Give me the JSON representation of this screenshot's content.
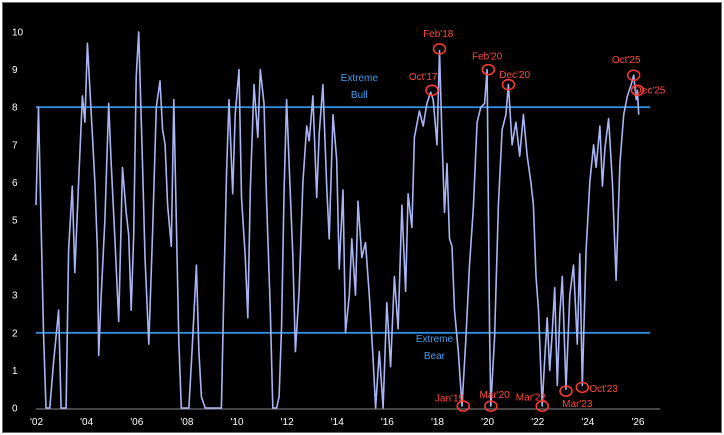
{
  "chart_data": {
    "type": "line",
    "title": "",
    "xlabel": "",
    "ylabel": "",
    "ylim": [
      0,
      10
    ],
    "xlim": [
      2002,
      2026.9
    ],
    "grid": false,
    "legend": "none",
    "colors": {
      "background": "#000000",
      "line": "#a9b4f5",
      "threshold": "#2e8fe0",
      "annotation": "#ff3b30",
      "text": "#ffffff"
    },
    "x_ticks": [
      {
        "x": 2002,
        "label": "'02"
      },
      {
        "x": 2004,
        "label": "'04"
      },
      {
        "x": 2006,
        "label": "'06"
      },
      {
        "x": 2008,
        "label": "'08"
      },
      {
        "x": 2010,
        "label": "'10"
      },
      {
        "x": 2012,
        "label": "'12"
      },
      {
        "x": 2014,
        "label": "'14"
      },
      {
        "x": 2016,
        "label": "'16"
      },
      {
        "x": 2018,
        "label": "'18"
      },
      {
        "x": 2020,
        "label": "'20"
      },
      {
        "x": 2022,
        "label": "'22"
      },
      {
        "x": 2024,
        "label": "'24"
      },
      {
        "x": 2026,
        "label": "'26"
      }
    ],
    "y_ticks": [
      {
        "y": 0,
        "label": "0"
      },
      {
        "y": 1,
        "label": "1"
      },
      {
        "y": 2,
        "label": "2"
      },
      {
        "y": 3,
        "label": "3"
      },
      {
        "y": 4,
        "label": "4"
      },
      {
        "y": 5,
        "label": "5"
      },
      {
        "y": 6,
        "label": "6"
      },
      {
        "y": 7,
        "label": "7"
      },
      {
        "y": 8,
        "label": "8"
      },
      {
        "y": 9,
        "label": "9"
      },
      {
        "y": 10,
        "label": "10"
      }
    ],
    "thresholds": [
      {
        "y": 8,
        "label_lines": [
          "Extreme",
          "Bull"
        ],
        "label_x": 2014.9,
        "label_y": [
          8.7,
          8.25
        ]
      },
      {
        "y": 2,
        "label_lines": [
          "Extreme",
          "Bear"
        ],
        "label_x": 2017.9,
        "label_y": [
          1.75,
          1.3
        ]
      }
    ],
    "annotations": [
      {
        "label": "Oct'17",
        "x": 2017.8,
        "y": 8.45,
        "label_x": 2017.45,
        "label_y": 8.8
      },
      {
        "label": "Feb'18",
        "x": 2018.1,
        "y": 9.55,
        "label_x": 2018.05,
        "label_y": 9.95
      },
      {
        "label": "Jan'19",
        "x": 2019.05,
        "y": 0.05,
        "label_x": 2018.5,
        "label_y": 0.25
      },
      {
        "label": "Feb'20",
        "x": 2020.05,
        "y": 9.0,
        "label_x": 2020.0,
        "label_y": 9.35
      },
      {
        "label": "Mar'20",
        "x": 2020.15,
        "y": 0.05,
        "label_x": 2020.3,
        "label_y": 0.35
      },
      {
        "label": "Dec'20",
        "x": 2020.85,
        "y": 8.6,
        "label_x": 2021.1,
        "label_y": 8.85
      },
      {
        "label": "Mar'22",
        "x": 2022.2,
        "y": 0.05,
        "label_x": 2021.75,
        "label_y": 0.28
      },
      {
        "label": "Mar'23",
        "x": 2023.15,
        "y": 0.45,
        "label_x": 2023.6,
        "label_y": 0.1
      },
      {
        "label": "Oct'23",
        "x": 2023.8,
        "y": 0.55,
        "label_x": 2024.65,
        "label_y": 0.5
      },
      {
        "label": "Oct'25",
        "x": 2025.85,
        "y": 8.85,
        "label_x": 2025.55,
        "label_y": 9.25
      },
      {
        "label": "Dec'25",
        "x": 2026.0,
        "y": 8.45,
        "label_x": 2026.5,
        "label_y": 8.45
      }
    ],
    "series": [
      {
        "values": [
          [
            2002.0,
            5.4
          ],
          [
            2002.1,
            8.0
          ],
          [
            2002.2,
            5.0
          ],
          [
            2002.3,
            2.0
          ],
          [
            2002.4,
            0.0
          ],
          [
            2002.55,
            0.0
          ],
          [
            2002.7,
            1.2
          ],
          [
            2002.9,
            2.6
          ],
          [
            2003.0,
            0.0
          ],
          [
            2003.2,
            0.0
          ],
          [
            2003.3,
            4.2
          ],
          [
            2003.45,
            5.9
          ],
          [
            2003.55,
            3.6
          ],
          [
            2003.7,
            6.0
          ],
          [
            2003.85,
            8.3
          ],
          [
            2003.95,
            7.6
          ],
          [
            2004.05,
            9.7
          ],
          [
            2004.2,
            7.9
          ],
          [
            2004.35,
            6.0
          ],
          [
            2004.45,
            4.2
          ],
          [
            2004.5,
            1.4
          ],
          [
            2004.6,
            3.0
          ],
          [
            2004.75,
            5.0
          ],
          [
            2004.9,
            8.1
          ],
          [
            2005.0,
            6.5
          ],
          [
            2005.15,
            4.5
          ],
          [
            2005.3,
            2.3
          ],
          [
            2005.45,
            6.4
          ],
          [
            2005.6,
            5.2
          ],
          [
            2005.7,
            4.6
          ],
          [
            2005.8,
            2.6
          ],
          [
            2005.9,
            4.6
          ],
          [
            2006.0,
            8.8
          ],
          [
            2006.1,
            10.0
          ],
          [
            2006.25,
            6.5
          ],
          [
            2006.35,
            4.0
          ],
          [
            2006.5,
            1.7
          ],
          [
            2006.65,
            4.6
          ],
          [
            2006.8,
            8.0
          ],
          [
            2006.95,
            8.7
          ],
          [
            2007.05,
            7.4
          ],
          [
            2007.15,
            7.0
          ],
          [
            2007.25,
            5.4
          ],
          [
            2007.4,
            4.3
          ],
          [
            2007.5,
            8.2
          ],
          [
            2007.6,
            5.0
          ],
          [
            2007.7,
            1.8
          ],
          [
            2007.8,
            0.0
          ],
          [
            2008.1,
            0.0
          ],
          [
            2008.25,
            1.8
          ],
          [
            2008.4,
            3.8
          ],
          [
            2008.5,
            1.5
          ],
          [
            2008.6,
            0.3
          ],
          [
            2008.75,
            0.0
          ],
          [
            2009.2,
            0.0
          ],
          [
            2009.4,
            0.0
          ],
          [
            2009.5,
            3.3
          ],
          [
            2009.6,
            6.2
          ],
          [
            2009.7,
            8.2
          ],
          [
            2009.85,
            5.7
          ],
          [
            2009.95,
            7.8
          ],
          [
            2010.1,
            9.0
          ],
          [
            2010.2,
            5.6
          ],
          [
            2010.35,
            4.0
          ],
          [
            2010.45,
            2.4
          ],
          [
            2010.55,
            5.8
          ],
          [
            2010.7,
            8.6
          ],
          [
            2010.85,
            7.2
          ],
          [
            2010.95,
            9.0
          ],
          [
            2011.1,
            8.1
          ],
          [
            2011.2,
            5.5
          ],
          [
            2011.35,
            2.6
          ],
          [
            2011.45,
            0.0
          ],
          [
            2011.6,
            0.0
          ],
          [
            2011.7,
            0.3
          ],
          [
            2011.8,
            2.2
          ],
          [
            2011.9,
            5.8
          ],
          [
            2012.0,
            8.2
          ],
          [
            2012.1,
            6.5
          ],
          [
            2012.25,
            4.0
          ],
          [
            2012.35,
            1.5
          ],
          [
            2012.5,
            3.1
          ],
          [
            2012.65,
            6.0
          ],
          [
            2012.8,
            7.5
          ],
          [
            2012.9,
            7.1
          ],
          [
            2013.05,
            8.3
          ],
          [
            2013.2,
            5.6
          ],
          [
            2013.3,
            7.3
          ],
          [
            2013.45,
            8.6
          ],
          [
            2013.6,
            5.9
          ],
          [
            2013.7,
            4.5
          ],
          [
            2013.85,
            7.8
          ],
          [
            2014.0,
            6.6
          ],
          [
            2014.1,
            3.7
          ],
          [
            2014.25,
            5.8
          ],
          [
            2014.35,
            2.0
          ],
          [
            2014.5,
            3.0
          ],
          [
            2014.6,
            4.5
          ],
          [
            2014.75,
            3.0
          ],
          [
            2014.85,
            5.5
          ],
          [
            2015.0,
            4.0
          ],
          [
            2015.15,
            4.4
          ],
          [
            2015.3,
            3.0
          ],
          [
            2015.45,
            1.3
          ],
          [
            2015.55,
            0.0
          ],
          [
            2015.7,
            1.5
          ],
          [
            2015.85,
            0.0
          ],
          [
            2016.0,
            2.8
          ],
          [
            2016.15,
            1.1
          ],
          [
            2016.3,
            3.5
          ],
          [
            2016.45,
            2.1
          ],
          [
            2016.6,
            5.4
          ],
          [
            2016.75,
            3.1
          ],
          [
            2016.85,
            5.7
          ],
          [
            2017.0,
            4.8
          ],
          [
            2017.1,
            7.2
          ],
          [
            2017.3,
            7.9
          ],
          [
            2017.45,
            7.5
          ],
          [
            2017.6,
            8.1
          ],
          [
            2017.75,
            8.4
          ],
          [
            2017.85,
            8.2
          ],
          [
            2018.0,
            7.0
          ],
          [
            2018.1,
            9.5
          ],
          [
            2018.2,
            7.2
          ],
          [
            2018.3,
            5.2
          ],
          [
            2018.4,
            6.5
          ],
          [
            2018.5,
            4.5
          ],
          [
            2018.6,
            4.3
          ],
          [
            2018.7,
            2.6
          ],
          [
            2018.85,
            1.5
          ],
          [
            2019.0,
            0.05
          ],
          [
            2019.15,
            1.8
          ],
          [
            2019.3,
            3.8
          ],
          [
            2019.45,
            5.3
          ],
          [
            2019.6,
            7.6
          ],
          [
            2019.75,
            8.0
          ],
          [
            2019.9,
            8.1
          ],
          [
            2020.0,
            9.0
          ],
          [
            2020.1,
            2.0
          ],
          [
            2020.15,
            0.05
          ],
          [
            2020.3,
            1.9
          ],
          [
            2020.45,
            5.4
          ],
          [
            2020.6,
            7.4
          ],
          [
            2020.75,
            7.8
          ],
          [
            2020.85,
            8.6
          ],
          [
            2021.0,
            7.0
          ],
          [
            2021.15,
            7.6
          ],
          [
            2021.3,
            6.7
          ],
          [
            2021.45,
            7.8
          ],
          [
            2021.6,
            6.7
          ],
          [
            2021.75,
            6.0
          ],
          [
            2021.85,
            5.4
          ],
          [
            2021.95,
            3.5
          ],
          [
            2022.05,
            2.6
          ],
          [
            2022.2,
            0.05
          ],
          [
            2022.3,
            1.3
          ],
          [
            2022.4,
            2.4
          ],
          [
            2022.5,
            1.0
          ],
          [
            2022.6,
            2.0
          ],
          [
            2022.7,
            3.2
          ],
          [
            2022.8,
            0.6
          ],
          [
            2022.9,
            2.5
          ],
          [
            2023.0,
            3.5
          ],
          [
            2023.15,
            0.5
          ],
          [
            2023.3,
            3.0
          ],
          [
            2023.45,
            3.8
          ],
          [
            2023.6,
            1.7
          ],
          [
            2023.7,
            4.1
          ],
          [
            2023.8,
            0.6
          ],
          [
            2023.95,
            4.2
          ],
          [
            2024.1,
            6.0
          ],
          [
            2024.25,
            7.0
          ],
          [
            2024.35,
            6.4
          ],
          [
            2024.5,
            7.5
          ],
          [
            2024.6,
            5.9
          ],
          [
            2024.7,
            6.9
          ],
          [
            2024.85,
            7.7
          ],
          [
            2025.0,
            6.0
          ],
          [
            2025.15,
            3.4
          ],
          [
            2025.3,
            6.5
          ],
          [
            2025.45,
            7.8
          ],
          [
            2025.6,
            8.3
          ],
          [
            2025.75,
            8.6
          ],
          [
            2025.85,
            8.85
          ],
          [
            2025.95,
            8.2
          ],
          [
            2026.0,
            8.45
          ],
          [
            2026.05,
            7.8
          ]
        ]
      }
    ]
  }
}
